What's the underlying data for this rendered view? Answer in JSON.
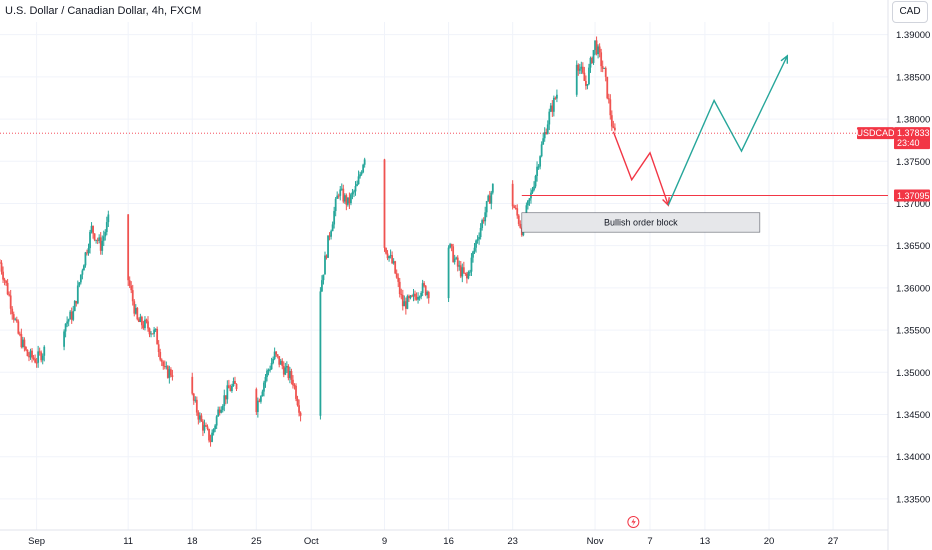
{
  "header": {
    "title": "U.S. Dollar / Canadian Dollar, 4h, FXCM",
    "currency_button": "CAD"
  },
  "colors": {
    "up": "#26a69a",
    "down": "#ef5350",
    "arrow_up": "#26a69a",
    "arrow_down": "#f23645",
    "price_label": "#f23645",
    "zone_fill": "#e6e7ea",
    "zone_border": "#5d606b"
  },
  "icons": [
    "lightning-icon"
  ],
  "chart_data": {
    "type": "candlestick",
    "symbol": "USDCAD",
    "ylim": [
      1.3325,
      1.3915
    ],
    "y_ticks": [
      "1.39000",
      "1.38500",
      "1.38000",
      "1.37500",
      "1.37000",
      "1.36500",
      "1.36000",
      "1.35500",
      "1.35000",
      "1.34500",
      "1.34000",
      "1.33500"
    ],
    "x_ticks": [
      "Sep",
      "11",
      "18",
      "25",
      "Oct",
      "9",
      "16",
      "23",
      "Nov",
      "7",
      "13",
      "20",
      "27"
    ],
    "x_tick_dates": [
      "2023-09-01",
      "2023-09-11",
      "2023-09-18",
      "2023-09-25",
      "2023-10-01",
      "2023-10-09",
      "2023-10-16",
      "2023-10-23",
      "2023-11-01",
      "2023-11-07",
      "2023-11-13",
      "2023-11-20",
      "2023-11-27"
    ],
    "xlim": [
      "2023-08-28",
      "2023-12-03"
    ],
    "close_path": [
      [
        "2023-08-28",
        1.363
      ],
      [
        "2023-08-29",
        1.359
      ],
      [
        "2023-08-30",
        1.3545
      ],
      [
        "2023-08-31",
        1.352
      ],
      [
        "2023-09-01",
        1.3515
      ],
      [
        "2023-09-05",
        1.357
      ],
      [
        "2023-09-06",
        1.3625
      ],
      [
        "2023-09-07",
        1.367
      ],
      [
        "2023-09-08",
        1.365
      ],
      [
        "2023-09-09",
        1.3685
      ],
      [
        "2023-09-10",
        1.3675
      ],
      [
        "2023-09-11",
        1.361
      ],
      [
        "2023-09-12",
        1.356
      ],
      [
        "2023-09-13",
        1.3555
      ],
      [
        "2023-09-14",
        1.3545
      ],
      [
        "2023-09-15",
        1.35
      ],
      [
        "2023-09-16",
        1.35
      ],
      [
        "2023-09-17",
        1.3495
      ],
      [
        "2023-09-18",
        1.347
      ],
      [
        "2023-09-19",
        1.344
      ],
      [
        "2023-09-20",
        1.342
      ],
      [
        "2023-09-21",
        1.346
      ],
      [
        "2023-09-22",
        1.348
      ],
      [
        "2023-09-23",
        1.3485
      ],
      [
        "2023-09-24",
        1.348
      ],
      [
        "2023-09-25",
        1.346
      ],
      [
        "2023-09-26",
        1.3495
      ],
      [
        "2023-09-27",
        1.352
      ],
      [
        "2023-09-28",
        1.3505
      ],
      [
        "2023-09-29",
        1.349
      ],
      [
        "2023-09-30",
        1.3445
      ],
      [
        "2023-10-01",
        1.352
      ],
      [
        "2023-10-02",
        1.36
      ],
      [
        "2023-10-03",
        1.3665
      ],
      [
        "2023-10-04",
        1.3715
      ],
      [
        "2023-10-05",
        1.37
      ],
      [
        "2023-10-06",
        1.372
      ],
      [
        "2023-10-07",
        1.3765
      ],
      [
        "2023-10-08",
        1.3725
      ],
      [
        "2023-10-09",
        1.365
      ],
      [
        "2023-10-10",
        1.3625
      ],
      [
        "2023-10-11",
        1.358
      ],
      [
        "2023-10-12",
        1.3585
      ],
      [
        "2023-10-13",
        1.36
      ],
      [
        "2023-10-14",
        1.3595
      ],
      [
        "2023-10-15",
        1.3685
      ],
      [
        "2023-10-16",
        1.365
      ],
      [
        "2023-10-17",
        1.3625
      ],
      [
        "2023-10-18",
        1.361
      ],
      [
        "2023-10-19",
        1.3655
      ],
      [
        "2023-10-20",
        1.369
      ],
      [
        "2023-10-21",
        1.3725
      ],
      [
        "2023-10-22",
        1.371
      ],
      [
        "2023-10-23",
        1.37
      ],
      [
        "2023-10-24",
        1.367
      ],
      [
        "2023-10-25",
        1.371
      ],
      [
        "2023-10-26",
        1.376
      ],
      [
        "2023-10-27",
        1.3805
      ],
      [
        "2023-10-28",
        1.3835
      ],
      [
        "2023-10-29",
        1.385
      ],
      [
        "2023-10-30",
        1.387
      ],
      [
        "2023-10-31",
        1.384
      ],
      [
        "2023-11-01",
        1.389
      ],
      [
        "2023-11-02",
        1.3855
      ],
      [
        "2023-11-03",
        1.3783
      ]
    ],
    "key_dates": {
      "last": "2023-11-03"
    },
    "last_price": {
      "label": "USDCAD",
      "value": "1.37833",
      "countdown": "23:40",
      "y": 1.37833
    },
    "level_line": {
      "value": "1.37095",
      "y": 1.37095,
      "x_start": "2023-10-24"
    },
    "order_block": {
      "label": "Bullish order block",
      "x_start": "2023-10-24",
      "x_end": "2023-11-19",
      "y_top": 1.3689,
      "y_bottom": 1.3666
    },
    "projection": {
      "red_path": [
        [
          "2023-11-03",
          1.3785
        ],
        [
          "2023-11-05",
          1.3728
        ],
        [
          "2023-11-07",
          1.376
        ],
        [
          "2023-11-09",
          1.3698
        ]
      ],
      "green_path": [
        [
          "2023-11-09",
          1.3698
        ],
        [
          "2023-11-14",
          1.3822
        ],
        [
          "2023-11-17",
          1.3762
        ],
        [
          "2023-11-22",
          1.3875
        ]
      ]
    }
  }
}
